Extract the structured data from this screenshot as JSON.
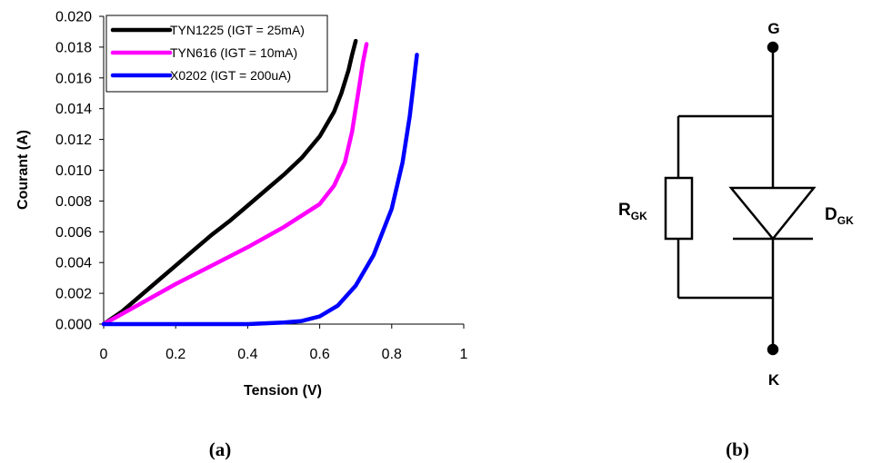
{
  "chart_data": {
    "type": "line",
    "xlabel": "Tension (V)",
    "ylabel": "Courant (A)",
    "xlim": [
      0,
      1
    ],
    "ylim": [
      0,
      0.02
    ],
    "x_ticks": [
      "0",
      "0.2",
      "0.4",
      "0.6",
      "0.8",
      "1"
    ],
    "y_ticks": [
      "0.000",
      "0.002",
      "0.004",
      "0.006",
      "0.008",
      "0.010",
      "0.012",
      "0.014",
      "0.016",
      "0.018",
      "0.020"
    ],
    "grid": false,
    "legend_position": "top-left",
    "series": [
      {
        "name": "TYN1225 (IGT = 25mA)",
        "color": "#000000",
        "points": [
          [
            0,
            0
          ],
          [
            0.05,
            0.0008
          ],
          [
            0.1,
            0.0018
          ],
          [
            0.15,
            0.0028
          ],
          [
            0.2,
            0.0038
          ],
          [
            0.25,
            0.0048
          ],
          [
            0.3,
            0.0058
          ],
          [
            0.35,
            0.0067
          ],
          [
            0.4,
            0.0077
          ],
          [
            0.45,
            0.0087
          ],
          [
            0.5,
            0.0097
          ],
          [
            0.55,
            0.0108
          ],
          [
            0.6,
            0.0122
          ],
          [
            0.64,
            0.0138
          ],
          [
            0.66,
            0.015
          ],
          [
            0.68,
            0.0165
          ],
          [
            0.69,
            0.0175
          ],
          [
            0.7,
            0.0184
          ]
        ]
      },
      {
        "name": "TYN616 (IGT = 10mA)",
        "color": "#ff00ff",
        "points": [
          [
            0,
            0
          ],
          [
            0.1,
            0.0013
          ],
          [
            0.2,
            0.0026
          ],
          [
            0.3,
            0.0038
          ],
          [
            0.4,
            0.005
          ],
          [
            0.5,
            0.0063
          ],
          [
            0.6,
            0.0078
          ],
          [
            0.64,
            0.009
          ],
          [
            0.67,
            0.0105
          ],
          [
            0.69,
            0.0125
          ],
          [
            0.71,
            0.0155
          ],
          [
            0.72,
            0.017
          ],
          [
            0.73,
            0.0182
          ]
        ]
      },
      {
        "name": "X0202 (IGT = 200uA)",
        "color": "#0000ff",
        "points": [
          [
            0,
            0
          ],
          [
            0.4,
            0
          ],
          [
            0.5,
            0.0001
          ],
          [
            0.55,
            0.0002
          ],
          [
            0.6,
            0.0005
          ],
          [
            0.65,
            0.0012
          ],
          [
            0.7,
            0.0025
          ],
          [
            0.75,
            0.0045
          ],
          [
            0.8,
            0.0075
          ],
          [
            0.83,
            0.0105
          ],
          [
            0.85,
            0.0135
          ],
          [
            0.86,
            0.0155
          ],
          [
            0.87,
            0.0175
          ]
        ]
      }
    ]
  },
  "labels": {
    "panel_a": "(a)",
    "panel_b": "(b)"
  },
  "circuit": {
    "gate": "G",
    "cathode": "K",
    "resistor_main": "R",
    "resistor_sub": "GK",
    "diode_main": "D",
    "diode_sub": "GK"
  }
}
